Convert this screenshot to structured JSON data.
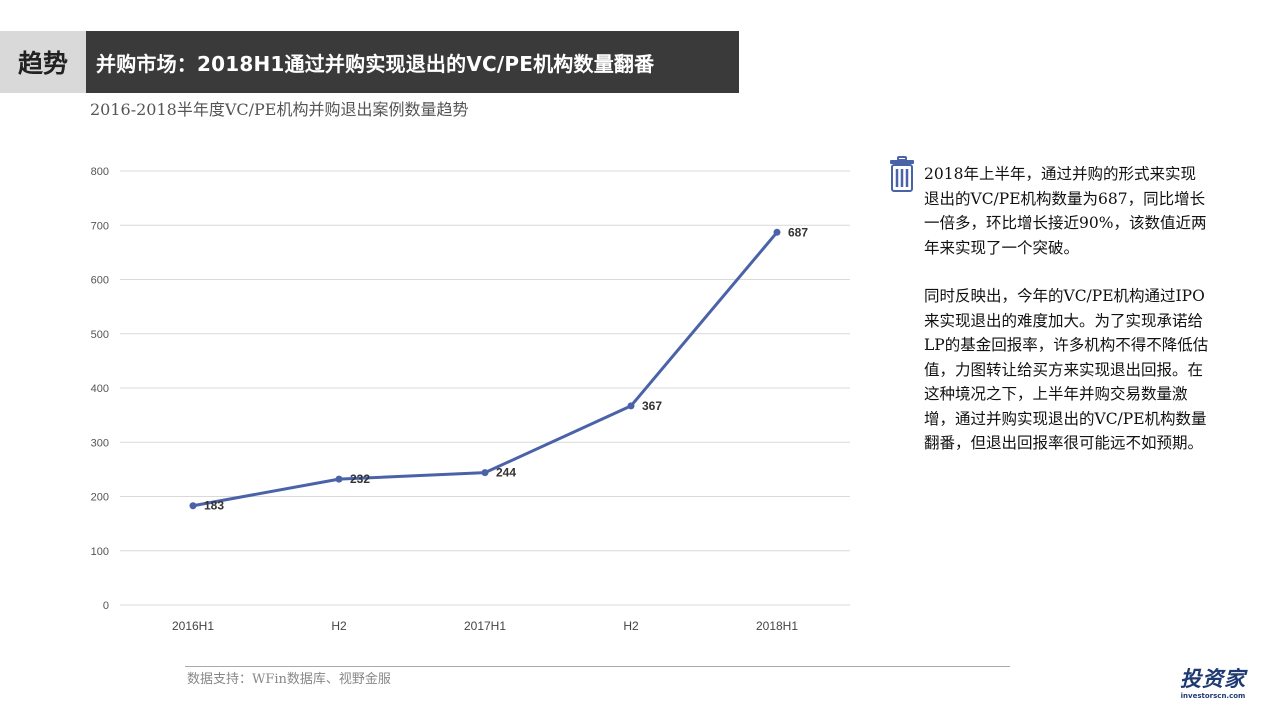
{
  "header": {
    "tag": "趋势",
    "title": "并购市场：2018H1通过并购实现退出的VC/PE机构数量翻番"
  },
  "chart_data": {
    "type": "line",
    "title": "2016-2018半年度VC/PE机构并购退出案例数量趋势",
    "categories": [
      "2016H1",
      "H2",
      "2017H1",
      "H2",
      "2018H1"
    ],
    "series": [
      {
        "values": [
          183,
          232,
          244,
          367,
          687
        ],
        "color": "#4a62a8"
      }
    ],
    "ylim": [
      0,
      800
    ],
    "yticks": [
      0,
      100,
      200,
      300,
      400,
      500,
      600,
      700,
      800
    ],
    "xlabel": "",
    "ylabel": "",
    "grid": true,
    "data_labels": true
  },
  "side": {
    "icon": "trash-can-icon",
    "paragraph1": "2018年上半年，通过并购的形式来实现退出的VC/PE机构数量为687，同比增长一倍多，环比增长接近90%，该数值近两年来实现了一个突破。",
    "paragraph2": "同时反映出，今年的VC/PE机构通过IPO来实现退出的难度加大。为了实现承诺给LP的基金回报率，许多机构不得不降低估值，力图转让给买方来实现退出回报。在这种境况之下，上半年并购交易数量激增，通过并购实现退出的VC/PE机构数量翻番，但退出回报率很可能远不如预期。"
  },
  "footer": {
    "source": "数据支持：WFin数据库、视野金服",
    "logo_main": "投资家",
    "logo_sub": "investorscn.com"
  },
  "colors": {
    "title_bar": "#3a3a3a",
    "tag_box": "#d9d9d9",
    "icon": "#4a62a8",
    "grid": "#d9d9d9"
  }
}
